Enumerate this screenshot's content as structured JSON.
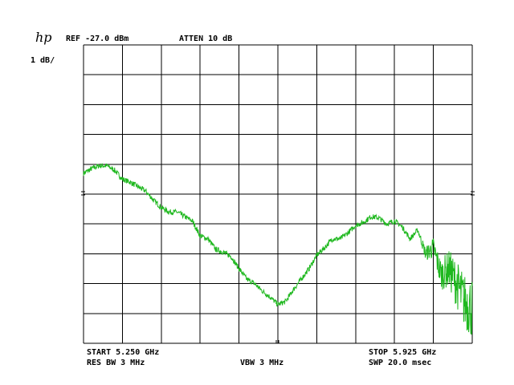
{
  "header": {
    "logo": "hp",
    "ref": "REF -27.0 dBm",
    "atten": "ATTEN 10 dB",
    "scale": "1 dB/"
  },
  "footer": {
    "start": "START 5.250 GHz",
    "stop": "STOP 5.925 GHz",
    "res_bw": "RES BW 3 MHz",
    "vbw": "VBW 3 MHz",
    "sweep": "SWP 20.0 msec"
  },
  "colors": {
    "trace": "#1fb81f",
    "grid": "#000000",
    "background": "#ffffff"
  },
  "chart_data": {
    "type": "line",
    "xlabel": "",
    "ylabel": "",
    "xlim": [
      5.25,
      5.925
    ],
    "ylim": [
      -37,
      -27
    ],
    "grid": true,
    "reference_level_dbm": -27.0,
    "scale_db_per_div": 1,
    "series": [
      {
        "x": [
          5.25,
          5.2635,
          5.277,
          5.2905,
          5.304,
          5.3175,
          5.331,
          5.3445,
          5.358,
          5.3715,
          5.385,
          5.3985,
          5.412,
          5.4255,
          5.439,
          5.4525,
          5.466,
          5.4795,
          5.493,
          5.5065,
          5.52,
          5.5335,
          5.547,
          5.5605,
          5.574,
          5.5875,
          5.601,
          5.6145,
          5.628,
          5.6415,
          5.655,
          5.6685,
          5.682,
          5.6955,
          5.709,
          5.7225,
          5.736,
          5.7495,
          5.763,
          5.7765,
          5.79,
          5.8035,
          5.817,
          5.8305,
          5.844,
          5.8575,
          5.871,
          5.8845,
          5.898,
          5.9115,
          5.925
        ],
        "y": [
          -31.3,
          -31.15,
          -31.05,
          -31.05,
          -31.2,
          -31.5,
          -31.6,
          -31.75,
          -31.9,
          -32.2,
          -32.45,
          -32.6,
          -32.6,
          -32.75,
          -32.9,
          -33.4,
          -33.5,
          -33.85,
          -33.95,
          -34.1,
          -34.5,
          -34.85,
          -35.0,
          -35.25,
          -35.45,
          -35.7,
          -35.6,
          -35.2,
          -34.85,
          -34.5,
          -34.05,
          -33.8,
          -33.5,
          -33.5,
          -33.3,
          -33.05,
          -32.95,
          -32.75,
          -32.8,
          -33.0,
          -32.9,
          -33.1,
          -33.5,
          -33.2,
          -34.0,
          -33.8,
          -34.7,
          -34.5,
          -35.0,
          -35.6,
          -35.8
        ]
      }
    ]
  }
}
